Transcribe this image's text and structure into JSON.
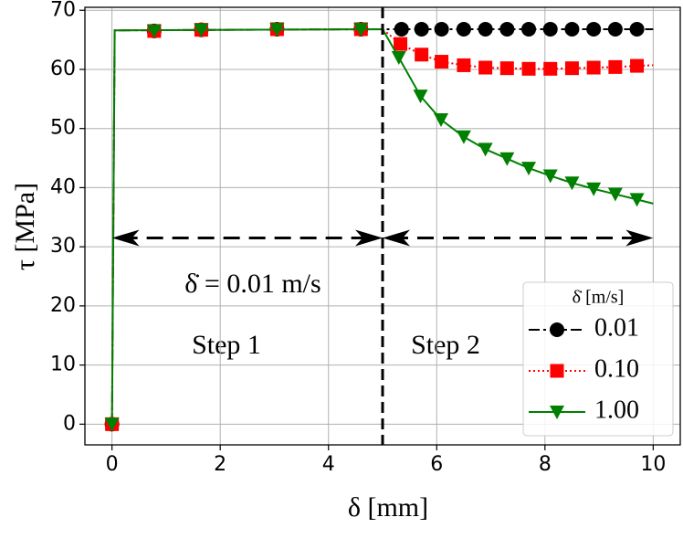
{
  "chart_data": {
    "type": "line",
    "xlabel": "δ [mm]",
    "ylabel": "τ [MPa]",
    "xlim": [
      -0.5,
      10.5
    ],
    "ylim": [
      -3.5,
      70.5
    ],
    "xticks": [
      0,
      2,
      4,
      6,
      8,
      10
    ],
    "yticks": [
      0,
      10,
      20,
      30,
      40,
      50,
      60,
      70
    ],
    "grid": true,
    "legend": {
      "title": "δ̇ [m/s]",
      "position": "lower right"
    },
    "annotations": {
      "rate_text": "δ̇ = 0.01 m/s",
      "step1": "Step 1",
      "step2": "Step 2",
      "step_boundary": 5,
      "arrow_y": 31.5,
      "arrow1": [
        0,
        5
      ],
      "arrow2": [
        5,
        10
      ]
    },
    "series": [
      {
        "name": "0.01",
        "color": "#000000",
        "marker": "circle",
        "linestyle": "dashdot",
        "x": [
          0,
          0.78,
          1.65,
          3.05,
          4.6,
          5.35,
          5.72,
          6.09,
          6.5,
          6.9,
          7.3,
          7.7,
          8.1,
          8.5,
          8.9,
          9.3,
          9.7
        ],
        "values": [
          0,
          66.5,
          66.7,
          66.8,
          66.8,
          66.8,
          66.8,
          66.8,
          66.8,
          66.8,
          66.8,
          66.8,
          66.8,
          66.8,
          66.8,
          66.8,
          66.8
        ],
        "line_x": [
          0,
          0.05,
          5,
          10
        ],
        "line_values": [
          0,
          66.6,
          66.8,
          66.8
        ]
      },
      {
        "name": "0.10",
        "color": "#ff0000",
        "marker": "square",
        "linestyle": "dotted",
        "x": [
          0,
          0.78,
          1.65,
          3.05,
          4.6,
          5.33,
          5.72,
          6.09,
          6.5,
          6.9,
          7.3,
          7.7,
          8.1,
          8.5,
          8.9,
          9.3,
          9.7
        ],
        "values": [
          0,
          66.5,
          66.7,
          66.8,
          66.8,
          64.3,
          62.5,
          61.3,
          60.7,
          60.3,
          60.2,
          60.1,
          60.1,
          60.2,
          60.3,
          60.4,
          60.6
        ],
        "line_x": [
          0,
          0.05,
          5,
          5.33,
          5.72,
          6.09,
          6.5,
          6.9,
          7.3,
          7.7,
          8.1,
          8.5,
          8.9,
          9.3,
          9.7,
          10
        ],
        "line_values": [
          0,
          66.6,
          66.8,
          64.3,
          62.5,
          61.3,
          60.7,
          60.3,
          60.2,
          60.1,
          60.1,
          60.2,
          60.3,
          60.4,
          60.6,
          60.7
        ]
      },
      {
        "name": "1.00",
        "color": "#008000",
        "marker": "triangle",
        "linestyle": "solid",
        "x": [
          0,
          0.78,
          1.65,
          3.05,
          4.6,
          5.3,
          5.7,
          6.08,
          6.5,
          6.9,
          7.3,
          7.7,
          8.1,
          8.5,
          8.9,
          9.3,
          9.7
        ],
        "values": [
          0,
          66.5,
          66.7,
          66.8,
          66.8,
          62,
          55.5,
          51.5,
          48.6,
          46.5,
          44.9,
          43.3,
          42,
          40.8,
          39.8,
          38.9,
          38
        ],
        "line_x": [
          0,
          0.05,
          5,
          5.3,
          5.7,
          6.08,
          6.5,
          6.9,
          7.3,
          7.7,
          8.1,
          8.5,
          8.9,
          9.3,
          9.7,
          10
        ],
        "line_values": [
          0,
          66.6,
          66.8,
          62,
          55.5,
          51.5,
          48.6,
          46.5,
          44.9,
          43.3,
          42,
          40.8,
          39.8,
          38.9,
          38,
          37.3
        ]
      }
    ]
  }
}
